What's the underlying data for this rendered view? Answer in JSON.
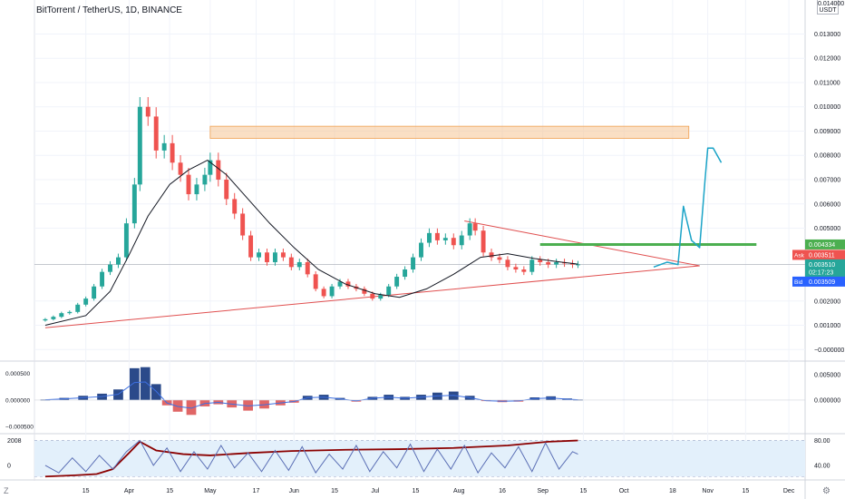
{
  "header": {
    "title": "BitTorrent / TetherUS, 1D, BINANCE",
    "unit_top": "0.014000",
    "unit": "USDT"
  },
  "corner": {
    "left": "Z",
    "right": "⚙"
  },
  "chart_data": [
    {
      "type": "candlestick",
      "title": "BitTorrent / TetherUS, 1D, BINANCE",
      "y_ticks": [
        "0.013000",
        "0.012000",
        "0.011000",
        "0.010000",
        "0.009000",
        "0.008000",
        "0.007000",
        "0.006000",
        "0.005000",
        "0.002000",
        "0.001000",
        "−0.000000"
      ],
      "ylim": [
        -0.0004,
        0.0144
      ],
      "x_ticks": [
        "15",
        "Apr",
        "15",
        "May",
        "17",
        "Jun",
        "15",
        "Jul",
        "15",
        "Aug",
        "16",
        "Sep",
        "15",
        "Oct",
        "18",
        "Nov",
        "15",
        "Dec"
      ],
      "x_tick_days": [
        -16,
        0,
        15,
        30,
        47,
        61,
        76,
        91,
        106,
        122,
        138,
        153,
        168,
        183,
        201,
        214,
        228,
        244
      ],
      "series": [
        {
          "style": "candles",
          "up_color": "#26a69a",
          "down_color": "#ef5350",
          "points": [
            {
              "d": -31,
              "c": 0.00125
            },
            {
              "d": -28,
              "c": 0.00135
            },
            {
              "d": -25,
              "c": 0.0015
            },
            {
              "d": -22,
              "c": 0.00155
            },
            {
              "d": -19,
              "c": 0.00185
            },
            {
              "d": -16,
              "c": 0.0021
            },
            {
              "d": -13,
              "c": 0.0026
            },
            {
              "d": -10,
              "c": 0.0032
            },
            {
              "d": -7,
              "c": 0.0035
            },
            {
              "d": -4,
              "c": 0.0038
            },
            {
              "d": -1,
              "c": 0.0052
            },
            {
              "d": 2,
              "c": 0.0068
            },
            {
              "d": 4,
              "c": 0.01
            },
            {
              "d": 7,
              "c": 0.0096
            },
            {
              "d": 10,
              "c": 0.0082
            },
            {
              "d": 13,
              "c": 0.0085
            },
            {
              "d": 16,
              "c": 0.0077
            },
            {
              "d": 19,
              "c": 0.0072
            },
            {
              "d": 22,
              "c": 0.0064
            },
            {
              "d": 25,
              "c": 0.0068
            },
            {
              "d": 28,
              "c": 0.0072
            },
            {
              "d": 30,
              "c": 0.0078
            },
            {
              "d": 33,
              "c": 0.007
            },
            {
              "d": 36,
              "c": 0.0062
            },
            {
              "d": 39,
              "c": 0.0056
            },
            {
              "d": 42,
              "c": 0.0047
            },
            {
              "d": 45,
              "c": 0.0038
            },
            {
              "d": 48,
              "c": 0.004
            },
            {
              "d": 51,
              "c": 0.0036
            },
            {
              "d": 54,
              "c": 0.004
            },
            {
              "d": 57,
              "c": 0.0038
            },
            {
              "d": 60,
              "c": 0.0034
            },
            {
              "d": 63,
              "c": 0.0036
            },
            {
              "d": 66,
              "c": 0.0031
            },
            {
              "d": 69,
              "c": 0.0025
            },
            {
              "d": 72,
              "c": 0.0022
            },
            {
              "d": 75,
              "c": 0.0026
            },
            {
              "d": 78,
              "c": 0.0028
            },
            {
              "d": 81,
              "c": 0.0026
            },
            {
              "d": 84,
              "c": 0.0025
            },
            {
              "d": 87,
              "c": 0.0023
            },
            {
              "d": 90,
              "c": 0.0021
            },
            {
              "d": 93,
              "c": 0.00225
            },
            {
              "d": 96,
              "c": 0.0026
            },
            {
              "d": 99,
              "c": 0.003
            },
            {
              "d": 102,
              "c": 0.0033
            },
            {
              "d": 105,
              "c": 0.0038
            },
            {
              "d": 108,
              "c": 0.0044
            },
            {
              "d": 111,
              "c": 0.0048
            },
            {
              "d": 114,
              "c": 0.0045
            },
            {
              "d": 117,
              "c": 0.0046
            },
            {
              "d": 120,
              "c": 0.0043
            },
            {
              "d": 123,
              "c": 0.0047
            },
            {
              "d": 126,
              "c": 0.0052
            },
            {
              "d": 128,
              "c": 0.0049
            },
            {
              "d": 131,
              "c": 0.004
            },
            {
              "d": 134,
              "c": 0.0038
            },
            {
              "d": 137,
              "c": 0.0037
            },
            {
              "d": 140,
              "c": 0.0034
            },
            {
              "d": 143,
              "c": 0.0033
            },
            {
              "d": 146,
              "c": 0.0032
            },
            {
              "d": 149,
              "c": 0.0037
            },
            {
              "d": 152,
              "c": 0.0036
            },
            {
              "d": 155,
              "c": 0.0035
            },
            {
              "d": 158,
              "c": 0.0036
            },
            {
              "d": 161,
              "c": 0.00355
            },
            {
              "d": 164,
              "c": 0.0035
            },
            {
              "d": 166,
              "c": 0.00351
            }
          ]
        },
        {
          "name": "",
          "style": "line",
          "color": "#131722",
          "points": [
            {
              "d": -31,
              "c": 0.001
            },
            {
              "d": -16,
              "c": 0.0014
            },
            {
              "d": -7,
              "c": 0.0024
            },
            {
              "d": 0,
              "c": 0.0039
            },
            {
              "d": 7,
              "c": 0.0055
            },
            {
              "d": 15,
              "c": 0.0068
            },
            {
              "d": 22,
              "c": 0.0074
            },
            {
              "d": 29,
              "c": 0.0078
            },
            {
              "d": 36,
              "c": 0.0072
            },
            {
              "d": 44,
              "c": 0.0062
            },
            {
              "d": 52,
              "c": 0.0052
            },
            {
              "d": 61,
              "c": 0.0042
            },
            {
              "d": 70,
              "c": 0.0033
            },
            {
              "d": 80,
              "c": 0.0027
            },
            {
              "d": 91,
              "c": 0.0023
            },
            {
              "d": 100,
              "c": 0.00215
            },
            {
              "d": 110,
              "c": 0.0025
            },
            {
              "d": 120,
              "c": 0.0031
            },
            {
              "d": 130,
              "c": 0.0038
            },
            {
              "d": 140,
              "c": 0.00395
            },
            {
              "d": 150,
              "c": 0.00375
            },
            {
              "d": 160,
              "c": 0.0036
            },
            {
              "d": 166,
              "c": 0.00352
            }
          ]
        }
      ],
      "annotations": {
        "resistance_zone": {
          "d1": 30,
          "d2": 207,
          "y1": 0.0087,
          "y2": 0.0092,
          "color": "#f5c08a"
        },
        "green_level": {
          "d1": 152,
          "d2": 232,
          "y": 0.00433,
          "color": "#4caf50"
        },
        "lower_trendline": {
          "d1": -31,
          "y1": 0.0009,
          "d2": 211,
          "y2": 0.00345,
          "color": "#e04f4f"
        },
        "upper_trendline": {
          "d1": 124,
          "y1": 0.0053,
          "d2": 211,
          "y2": 0.00345,
          "color": "#e04f4f"
        },
        "horizontal_price_line": {
          "y": 0.00351,
          "color": "#b2b5be"
        },
        "projection_path": [
          {
            "d": 194,
            "c": 0.0034
          },
          {
            "d": 199,
            "c": 0.0036
          },
          {
            "d": 203,
            "c": 0.0035
          },
          {
            "d": 205,
            "c": 0.0059
          },
          {
            "d": 208,
            "c": 0.0045
          },
          {
            "d": 211,
            "c": 0.0042
          },
          {
            "d": 213,
            "c": 0.007
          },
          {
            "d": 214,
            "c": 0.0083
          },
          {
            "d": 216,
            "c": 0.0083
          },
          {
            "d": 219,
            "c": 0.0077
          }
        ],
        "projection_color": "#1aa3c7"
      },
      "price_labels": [
        {
          "tag": "",
          "value": "0.004334",
          "bg": "#4caf50",
          "y": 0.00433
        },
        {
          "tag": "Ask",
          "value": "0.003511",
          "bg": "#ef5350",
          "y": 0.0039
        },
        {
          "tag": "",
          "value": "0.003510",
          "bg": "#26a69a",
          "y": 0.00351
        },
        {
          "tag": "",
          "value": "02:17:23",
          "bg": "#26a69a",
          "y": 0.00318
        },
        {
          "tag": "Bid",
          "value": "0.003509",
          "bg": "#2962ff",
          "y": 0.0028
        }
      ]
    },
    {
      "type": "histogram",
      "y_ticks_left": [
        "0.000500",
        "0.000000",
        "−0.000500"
      ],
      "y_ticks_right": [
        "0.005000",
        "0.000000"
      ],
      "ylim": [
        -0.0006,
        0.0007
      ],
      "colors": {
        "pos": "#2b4a8a",
        "neg": "#e06666",
        "line": "#3d6fe0"
      },
      "values": [
        {
          "d": -31,
          "v": 1e-05
        },
        {
          "d": -24,
          "v": 4e-05
        },
        {
          "d": -17,
          "v": 8e-05
        },
        {
          "d": -10,
          "v": 0.00012
        },
        {
          "d": -4,
          "v": 0.0002
        },
        {
          "d": 2,
          "v": 0.0006
        },
        {
          "d": 6,
          "v": 0.00062
        },
        {
          "d": 10,
          "v": 0.0003
        },
        {
          "d": 14,
          "v": -0.0001
        },
        {
          "d": 18,
          "v": -0.00022
        },
        {
          "d": 23,
          "v": -0.00028
        },
        {
          "d": 28,
          "v": -0.00012
        },
        {
          "d": 33,
          "v": -8e-05
        },
        {
          "d": 38,
          "v": -0.00014
        },
        {
          "d": 44,
          "v": -0.0002
        },
        {
          "d": 50,
          "v": -0.00016
        },
        {
          "d": 56,
          "v": -0.0001
        },
        {
          "d": 61,
          "v": -5e-05
        },
        {
          "d": 66,
          "v": 8e-05
        },
        {
          "d": 72,
          "v": 0.0001
        },
        {
          "d": 78,
          "v": 4e-05
        },
        {
          "d": 84,
          "v": -3e-05
        },
        {
          "d": 90,
          "v": 6e-05
        },
        {
          "d": 96,
          "v": 0.0001
        },
        {
          "d": 102,
          "v": 6e-05
        },
        {
          "d": 108,
          "v": 0.0001
        },
        {
          "d": 114,
          "v": 0.00014
        },
        {
          "d": 120,
          "v": 0.00016
        },
        {
          "d": 126,
          "v": 8e-05
        },
        {
          "d": 132,
          "v": -2e-05
        },
        {
          "d": 138,
          "v": -4e-05
        },
        {
          "d": 144,
          "v": -3e-05
        },
        {
          "d": 150,
          "v": 5e-05
        },
        {
          "d": 156,
          "v": 7e-05
        },
        {
          "d": 162,
          "v": 3e-05
        },
        {
          "d": 166,
          "v": 1e-05
        }
      ]
    },
    {
      "type": "line",
      "y_ticks_left": [
        "2008",
        "0"
      ],
      "y_ticks_right": [
        "80.00",
        "40.00"
      ],
      "ylim": [
        18,
        88
      ],
      "band": {
        "lo": 22,
        "hi": 80,
        "color": "#e3f0fb"
      },
      "series": [
        {
          "name": "",
          "color": "#8b0000",
          "values": [
            {
              "d": -31,
              "v": 22
            },
            {
              "d": -20,
              "v": 24
            },
            {
              "d": -12,
              "v": 26
            },
            {
              "d": -6,
              "v": 34
            },
            {
              "d": 0,
              "v": 60
            },
            {
              "d": 4,
              "v": 78
            },
            {
              "d": 10,
              "v": 64
            },
            {
              "d": 20,
              "v": 58
            },
            {
              "d": 30,
              "v": 56
            },
            {
              "d": 45,
              "v": 60
            },
            {
              "d": 60,
              "v": 63
            },
            {
              "d": 80,
              "v": 65
            },
            {
              "d": 100,
              "v": 66
            },
            {
              "d": 120,
              "v": 68
            },
            {
              "d": 140,
              "v": 72
            },
            {
              "d": 155,
              "v": 78
            },
            {
              "d": 166,
              "v": 80
            }
          ]
        },
        {
          "name": "",
          "color": "#5b6fb5",
          "values": [
            {
              "d": -31,
              "v": 40
            },
            {
              "d": -26,
              "v": 28
            },
            {
              "d": -21,
              "v": 52
            },
            {
              "d": -16,
              "v": 30
            },
            {
              "d": -11,
              "v": 56
            },
            {
              "d": -6,
              "v": 34
            },
            {
              "d": -1,
              "v": 62
            },
            {
              "d": 4,
              "v": 80
            },
            {
              "d": 9,
              "v": 40
            },
            {
              "d": 14,
              "v": 68
            },
            {
              "d": 19,
              "v": 30
            },
            {
              "d": 24,
              "v": 62
            },
            {
              "d": 29,
              "v": 34
            },
            {
              "d": 34,
              "v": 72
            },
            {
              "d": 39,
              "v": 36
            },
            {
              "d": 44,
              "v": 60
            },
            {
              "d": 49,
              "v": 30
            },
            {
              "d": 54,
              "v": 64
            },
            {
              "d": 59,
              "v": 32
            },
            {
              "d": 64,
              "v": 70
            },
            {
              "d": 69,
              "v": 28
            },
            {
              "d": 74,
              "v": 58
            },
            {
              "d": 79,
              "v": 34
            },
            {
              "d": 84,
              "v": 72
            },
            {
              "d": 89,
              "v": 30
            },
            {
              "d": 94,
              "v": 62
            },
            {
              "d": 99,
              "v": 36
            },
            {
              "d": 104,
              "v": 74
            },
            {
              "d": 109,
              "v": 30
            },
            {
              "d": 114,
              "v": 66
            },
            {
              "d": 119,
              "v": 34
            },
            {
              "d": 124,
              "v": 72
            },
            {
              "d": 129,
              "v": 28
            },
            {
              "d": 134,
              "v": 60
            },
            {
              "d": 139,
              "v": 36
            },
            {
              "d": 144,
              "v": 70
            },
            {
              "d": 149,
              "v": 30
            },
            {
              "d": 154,
              "v": 76
            },
            {
              "d": 159,
              "v": 34
            },
            {
              "d": 164,
              "v": 62
            },
            {
              "d": 166,
              "v": 58
            }
          ]
        }
      ]
    }
  ]
}
